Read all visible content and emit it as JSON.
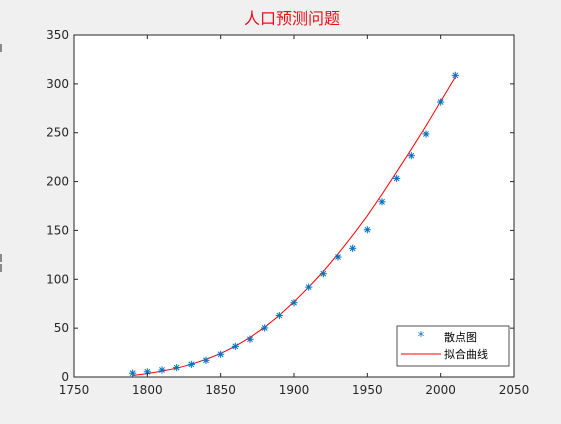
{
  "chart_data": {
    "type": "scatter",
    "title": "人口预测问题",
    "xlabel": "",
    "ylabel": "",
    "xlim": [
      1750,
      2050
    ],
    "ylim": [
      0,
      350
    ],
    "xticks": [
      1750,
      1800,
      1850,
      1900,
      1950,
      2000,
      2050
    ],
    "yticks": [
      0,
      50,
      100,
      150,
      200,
      250,
      300,
      350
    ],
    "grid": false,
    "legend_position": "bottom-right",
    "series": [
      {
        "name": "散点图",
        "type": "scatter",
        "marker": "*",
        "color": "#0072bd",
        "x": [
          1790,
          1800,
          1810,
          1820,
          1830,
          1840,
          1850,
          1860,
          1870,
          1880,
          1890,
          1900,
          1910,
          1920,
          1930,
          1940,
          1950,
          1960,
          1970,
          1980,
          1990,
          2000,
          2010
        ],
        "y": [
          3.9,
          5.3,
          7.2,
          9.6,
          12.9,
          17.1,
          23.2,
          31.4,
          38.6,
          50.2,
          62.9,
          76.0,
          92.0,
          105.7,
          122.8,
          131.7,
          150.7,
          179.3,
          203.2,
          226.5,
          248.7,
          281.4,
          308.7
        ]
      },
      {
        "name": "拟合曲线",
        "type": "line",
        "color": "#ff0000",
        "x": [
          1790,
          1800,
          1810,
          1820,
          1830,
          1840,
          1850,
          1860,
          1870,
          1880,
          1890,
          1900,
          1910,
          1920,
          1930,
          1940,
          1950,
          1960,
          1970,
          1980,
          1990,
          2000,
          2010
        ],
        "y": [
          1.5,
          3.5,
          6.0,
          9.0,
          13.0,
          18.0,
          24.0,
          31.5,
          40.5,
          51.0,
          63.0,
          77.0,
          92.0,
          108.0,
          126.0,
          145.0,
          165.0,
          187.0,
          210.0,
          233.0,
          257.0,
          282.0,
          307.0
        ]
      }
    ]
  }
}
